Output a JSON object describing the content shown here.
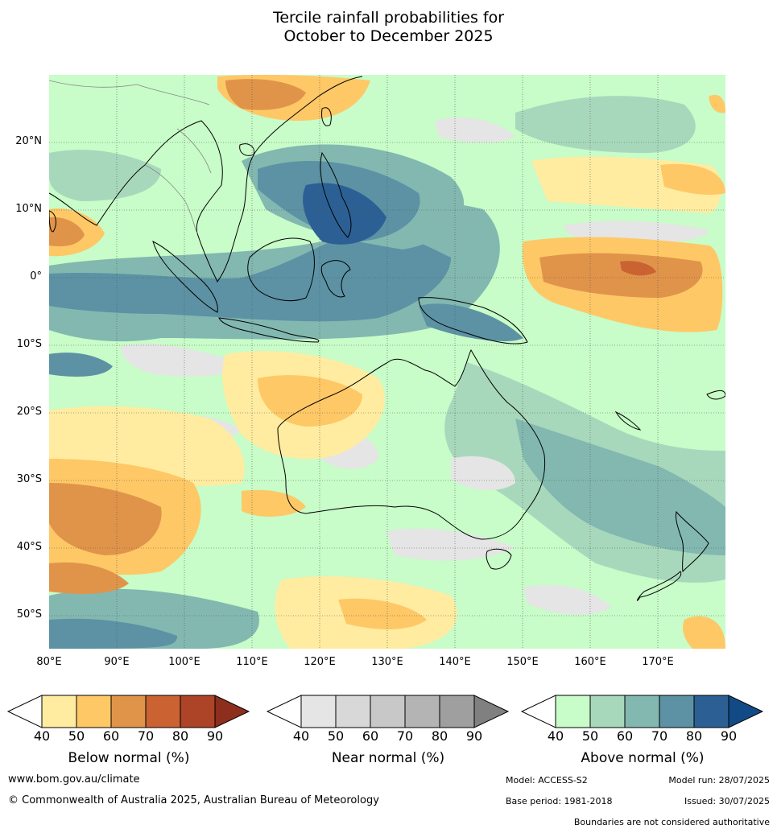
{
  "title": {
    "line1": "Tercile rainfall probabilities for",
    "line2": "October to December 2025"
  },
  "map": {
    "lon_range": [
      80,
      180
    ],
    "lat_range": [
      -55,
      30
    ],
    "lat_labels": [
      "20°N",
      "10°N",
      "0°",
      "10°S",
      "20°S",
      "30°S",
      "40°S",
      "50°S"
    ],
    "lat_values": [
      20,
      10,
      0,
      -10,
      -20,
      -30,
      -40,
      -50
    ],
    "lon_labels": [
      "80°E",
      "90°E",
      "100°E",
      "110°E",
      "120°E",
      "130°E",
      "140°E",
      "150°E",
      "160°E",
      "170°E"
    ],
    "lon_values": [
      80,
      90,
      100,
      110,
      120,
      130,
      140,
      150,
      160,
      170
    ],
    "grid": true
  },
  "colorbars": [
    {
      "label": "Below normal (%)",
      "ticks": [
        "40",
        "50",
        "60",
        "70",
        "80",
        "90"
      ],
      "colors": [
        "#ffeca0",
        "#fec866",
        "#e0944a",
        "#ca6232",
        "#ad4427",
        "#8e2e1c"
      ]
    },
    {
      "label": "Near normal (%)",
      "ticks": [
        "40",
        "50",
        "60",
        "70",
        "80",
        "90"
      ],
      "colors": [
        "#e5e5e5",
        "#d8d8d8",
        "#c8c8c8",
        "#b4b4b4",
        "#9f9f9f",
        "#808080"
      ]
    },
    {
      "label": "Above normal (%)",
      "ticks": [
        "40",
        "50",
        "60",
        "70",
        "80",
        "90"
      ],
      "colors": [
        "#c8fcc8",
        "#a8d8bc",
        "#82b8b0",
        "#5c92a4",
        "#2c6094",
        "#124a86"
      ]
    }
  ],
  "footer": {
    "website": "www.bom.gov.au/climate",
    "copyright": "© Commonwealth of Australia 2025, Australian Bureau of Meteorology",
    "model": "Model: ACCESS-S2",
    "model_run": "Model run: 28/07/2025",
    "base_period": "Base period: 1981-2018",
    "issued": "Issued: 30/07/2025",
    "disclaimer": "Boundaries are not considered authoritative"
  }
}
